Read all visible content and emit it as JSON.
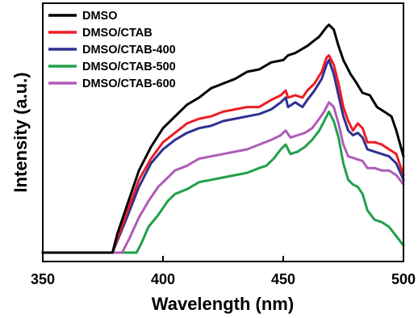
{
  "chart_data": {
    "type": "line",
    "xlabel": "Wavelength (nm)",
    "ylabel": "Intensity (a.u.)",
    "xlim": [
      350,
      500
    ],
    "ylim": [
      0,
      100
    ],
    "xticks": [
      350,
      400,
      450,
      500
    ],
    "show_y_tick_labels": false,
    "grid": false,
    "legend_position": "top-left",
    "series": [
      {
        "name": "DMSO",
        "color": "#000000",
        "points": [
          [
            350,
            0
          ],
          [
            379,
            0
          ],
          [
            381,
            8
          ],
          [
            385,
            20
          ],
          [
            390,
            35
          ],
          [
            395,
            45
          ],
          [
            400,
            53
          ],
          [
            405,
            58
          ],
          [
            410,
            63
          ],
          [
            415,
            66
          ],
          [
            420,
            70
          ],
          [
            425,
            72
          ],
          [
            430,
            74
          ],
          [
            435,
            77
          ],
          [
            440,
            78
          ],
          [
            445,
            81
          ],
          [
            450,
            82
          ],
          [
            452,
            84
          ],
          [
            455,
            85
          ],
          [
            460,
            88
          ],
          [
            465,
            92
          ],
          [
            468,
            96
          ],
          [
            469,
            97
          ],
          [
            471,
            95
          ],
          [
            473,
            88
          ],
          [
            475,
            82
          ],
          [
            478,
            76
          ],
          [
            480,
            73
          ],
          [
            483,
            68
          ],
          [
            486,
            67
          ],
          [
            489,
            62
          ],
          [
            492,
            60
          ],
          [
            495,
            58
          ],
          [
            497,
            52
          ],
          [
            500,
            41
          ]
        ]
      },
      {
        "name": "DMSO/CTAB",
        "color": "#ed1c24",
        "points": [
          [
            350,
            0
          ],
          [
            379,
            0
          ],
          [
            381,
            6
          ],
          [
            385,
            17
          ],
          [
            390,
            31
          ],
          [
            395,
            40
          ],
          [
            400,
            47
          ],
          [
            405,
            51
          ],
          [
            410,
            55
          ],
          [
            415,
            57
          ],
          [
            420,
            58
          ],
          [
            425,
            60
          ],
          [
            430,
            61
          ],
          [
            435,
            62
          ],
          [
            440,
            62
          ],
          [
            445,
            65
          ],
          [
            449,
            67
          ],
          [
            451,
            69
          ],
          [
            452,
            66
          ],
          [
            455,
            67
          ],
          [
            458,
            66
          ],
          [
            460,
            69
          ],
          [
            463,
            72
          ],
          [
            466,
            77
          ],
          [
            468,
            83
          ],
          [
            469,
            84
          ],
          [
            471,
            80
          ],
          [
            473,
            72
          ],
          [
            475,
            62
          ],
          [
            477,
            56
          ],
          [
            479,
            52
          ],
          [
            481,
            55
          ],
          [
            483,
            53
          ],
          [
            485,
            47
          ],
          [
            488,
            47
          ],
          [
            491,
            46
          ],
          [
            494,
            44
          ],
          [
            497,
            42
          ],
          [
            500,
            33
          ]
        ]
      },
      {
        "name": "DMSO/CTAB-400",
        "color": "#2e3192",
        "points": [
          [
            350,
            0
          ],
          [
            379,
            0
          ],
          [
            381,
            5
          ],
          [
            385,
            15
          ],
          [
            390,
            28
          ],
          [
            395,
            38
          ],
          [
            400,
            44
          ],
          [
            405,
            48
          ],
          [
            410,
            51
          ],
          [
            415,
            53
          ],
          [
            420,
            54
          ],
          [
            425,
            56
          ],
          [
            430,
            57
          ],
          [
            435,
            58
          ],
          [
            440,
            59
          ],
          [
            445,
            61
          ],
          [
            449,
            64
          ],
          [
            451,
            66
          ],
          [
            452,
            62
          ],
          [
            455,
            64
          ],
          [
            458,
            62
          ],
          [
            460,
            65
          ],
          [
            463,
            69
          ],
          [
            466,
            74
          ],
          [
            468,
            80
          ],
          [
            469,
            82
          ],
          [
            471,
            76
          ],
          [
            473,
            67
          ],
          [
            475,
            58
          ],
          [
            477,
            52
          ],
          [
            479,
            50
          ],
          [
            481,
            51
          ],
          [
            483,
            49
          ],
          [
            485,
            44
          ],
          [
            488,
            43
          ],
          [
            491,
            42
          ],
          [
            494,
            41
          ],
          [
            497,
            38
          ],
          [
            500,
            31
          ]
        ]
      },
      {
        "name": "DMSO/CTAB-500",
        "color": "#22a04a",
        "points": [
          [
            350,
            0
          ],
          [
            389,
            0
          ],
          [
            391,
            4
          ],
          [
            394,
            11
          ],
          [
            398,
            16
          ],
          [
            402,
            22
          ],
          [
            405,
            25
          ],
          [
            410,
            27
          ],
          [
            415,
            30
          ],
          [
            420,
            31
          ],
          [
            425,
            32
          ],
          [
            430,
            33
          ],
          [
            435,
            34
          ],
          [
            440,
            36
          ],
          [
            443,
            37
          ],
          [
            446,
            40
          ],
          [
            449,
            44
          ],
          [
            451,
            46
          ],
          [
            453,
            42
          ],
          [
            456,
            43
          ],
          [
            459,
            45
          ],
          [
            462,
            48
          ],
          [
            465,
            52
          ],
          [
            467,
            56
          ],
          [
            469,
            60
          ],
          [
            471,
            56
          ],
          [
            473,
            49
          ],
          [
            475,
            38
          ],
          [
            477,
            31
          ],
          [
            479,
            29
          ],
          [
            481,
            28
          ],
          [
            483,
            25
          ],
          [
            485,
            18
          ],
          [
            488,
            14
          ],
          [
            491,
            13
          ],
          [
            494,
            11
          ],
          [
            497,
            7
          ],
          [
            500,
            3
          ]
        ]
      },
      {
        "name": "DMSO/CTAB-600",
        "color": "#b05bb8",
        "points": [
          [
            350,
            0
          ],
          [
            383,
            0
          ],
          [
            386,
            6
          ],
          [
            390,
            15
          ],
          [
            394,
            22
          ],
          [
            398,
            28
          ],
          [
            402,
            32
          ],
          [
            405,
            35
          ],
          [
            410,
            37
          ],
          [
            415,
            40
          ],
          [
            420,
            41
          ],
          [
            425,
            42
          ],
          [
            430,
            43
          ],
          [
            435,
            44
          ],
          [
            440,
            46
          ],
          [
            445,
            48
          ],
          [
            449,
            50
          ],
          [
            451,
            52
          ],
          [
            453,
            49
          ],
          [
            456,
            50
          ],
          [
            459,
            51
          ],
          [
            462,
            53
          ],
          [
            465,
            57
          ],
          [
            467,
            60
          ],
          [
            469,
            64
          ],
          [
            471,
            62
          ],
          [
            473,
            55
          ],
          [
            475,
            46
          ],
          [
            477,
            41
          ],
          [
            480,
            40
          ],
          [
            483,
            39
          ],
          [
            485,
            36
          ],
          [
            488,
            36
          ],
          [
            491,
            35
          ],
          [
            494,
            35
          ],
          [
            497,
            33
          ],
          [
            500,
            29
          ]
        ]
      }
    ]
  }
}
